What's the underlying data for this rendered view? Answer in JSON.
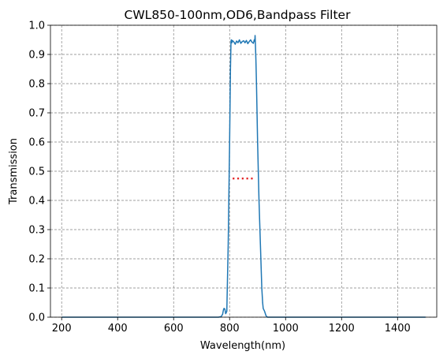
{
  "chart_data": {
    "type": "line",
    "title": "CWL850-100nm,OD6,Bandpass Filter",
    "xlabel": "Wavelength(nm)",
    "ylabel": "Transmission",
    "xlim": [
      160,
      1540
    ],
    "ylim": [
      0,
      1.0
    ],
    "xticks": [
      200,
      400,
      600,
      800,
      1000,
      1200,
      1400
    ],
    "yticks": [
      0.0,
      0.1,
      0.2,
      0.3,
      0.4,
      0.5,
      0.6,
      0.7,
      0.8,
      0.9,
      1.0
    ],
    "grid": true,
    "series": [
      {
        "color": "#1f77b4",
        "style": "solid",
        "x": [
          200,
          760,
          770,
          775,
          778,
          780,
          783,
          786,
          790,
          795,
          800,
          803,
          805,
          806,
          808,
          810,
          815,
          820,
          825,
          830,
          835,
          840,
          845,
          850,
          855,
          860,
          865,
          870,
          875,
          880,
          885,
          888,
          890,
          891,
          892,
          894,
          896,
          900,
          905,
          910,
          915,
          918,
          920,
          925,
          930,
          935,
          1500
        ],
        "y": [
          0.0,
          0.0,
          0.002,
          0.01,
          0.025,
          0.03,
          0.028,
          0.012,
          0.02,
          0.25,
          0.6,
          0.85,
          0.945,
          0.95,
          0.94,
          0.948,
          0.943,
          0.935,
          0.946,
          0.94,
          0.95,
          0.938,
          0.944,
          0.947,
          0.94,
          0.948,
          0.937,
          0.944,
          0.95,
          0.942,
          0.938,
          0.95,
          0.945,
          0.965,
          0.94,
          0.88,
          0.8,
          0.6,
          0.4,
          0.25,
          0.1,
          0.05,
          0.03,
          0.02,
          0.005,
          0.0,
          0.0
        ]
      },
      {
        "color": "#e31a1c",
        "style": "dotted",
        "x": [
          811,
          889
        ],
        "y": [
          0.475,
          0.475
        ]
      }
    ]
  }
}
